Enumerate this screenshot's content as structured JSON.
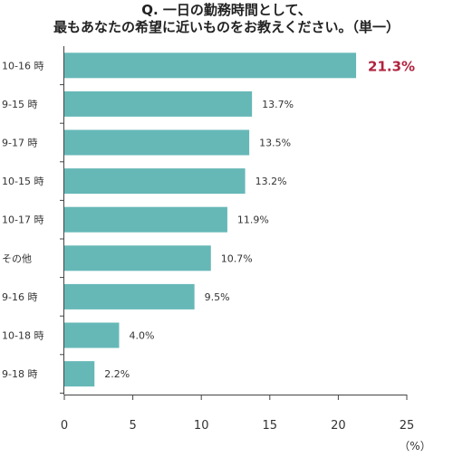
{
  "chart_data": {
    "type": "bar",
    "orientation": "horizontal",
    "title_line1": "Q. 一日の勤務時間として、",
    "title_line2": "最もあなたの希望に近いものをお教えください。（単一）",
    "categories": [
      "10-16 時",
      "9-15 時",
      "9-17 時",
      "10-15 時",
      "10-17 時",
      "その他",
      "9-16 時",
      "10-18 時",
      "9-18 時"
    ],
    "values": [
      21.3,
      13.7,
      13.5,
      13.2,
      11.9,
      10.7,
      9.5,
      4.0,
      2.2
    ],
    "value_labels": [
      "21.3%",
      "13.7%",
      "13.5%",
      "13.2%",
      "11.9%",
      "10.7%",
      "9.5%",
      "4.0%",
      "2.2%"
    ],
    "xlim": [
      0,
      25
    ],
    "xticks": [
      "0",
      "5",
      "10",
      "15",
      "20",
      "25"
    ],
    "unit_label": "（%）",
    "bar_color": "#66b8b7",
    "highlight_color": "#b0233e",
    "grid": false
  }
}
